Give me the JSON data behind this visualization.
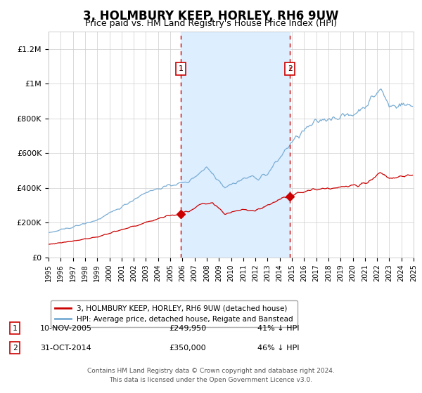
{
  "title": "3, HOLMBURY KEEP, HORLEY, RH6 9UW",
  "subtitle": "Price paid vs. HM Land Registry's House Price Index (HPI)",
  "title_fontsize": 12,
  "subtitle_fontsize": 9,
  "background_color": "#ffffff",
  "plot_bg_color": "#ffffff",
  "grid_color": "#cccccc",
  "hpi_line_color": "#7aadd4",
  "price_line_color": "#cc0000",
  "vline_color": "#cc0000",
  "shade_color": "#ddeeff",
  "ylim": [
    0,
    1300000
  ],
  "yticks": [
    0,
    200000,
    400000,
    600000,
    800000,
    1000000,
    1200000
  ],
  "ytick_labels": [
    "£0",
    "£200K",
    "£400K",
    "£600K",
    "£800K",
    "£1M",
    "£1.2M"
  ],
  "xstart": 1995,
  "xend": 2025,
  "sale1_date": 2005.86,
  "sale1_price": 249950,
  "sale1_label": "1",
  "sale1_date_str": "10-NOV-2005",
  "sale1_price_str": "£249,950",
  "sale1_hpi_str": "41% ↓ HPI",
  "sale2_date": 2014.83,
  "sale2_price": 350000,
  "sale2_label": "2",
  "sale2_date_str": "31-OCT-2014",
  "sale2_price_str": "£350,000",
  "sale2_hpi_str": "46% ↓ HPI",
  "legend_line1": "3, HOLMBURY KEEP, HORLEY, RH6 9UW (detached house)",
  "legend_line2": "HPI: Average price, detached house, Reigate and Banstead",
  "footer_line1": "Contains HM Land Registry data © Crown copyright and database right 2024.",
  "footer_line2": "This data is licensed under the Open Government Licence v3.0."
}
